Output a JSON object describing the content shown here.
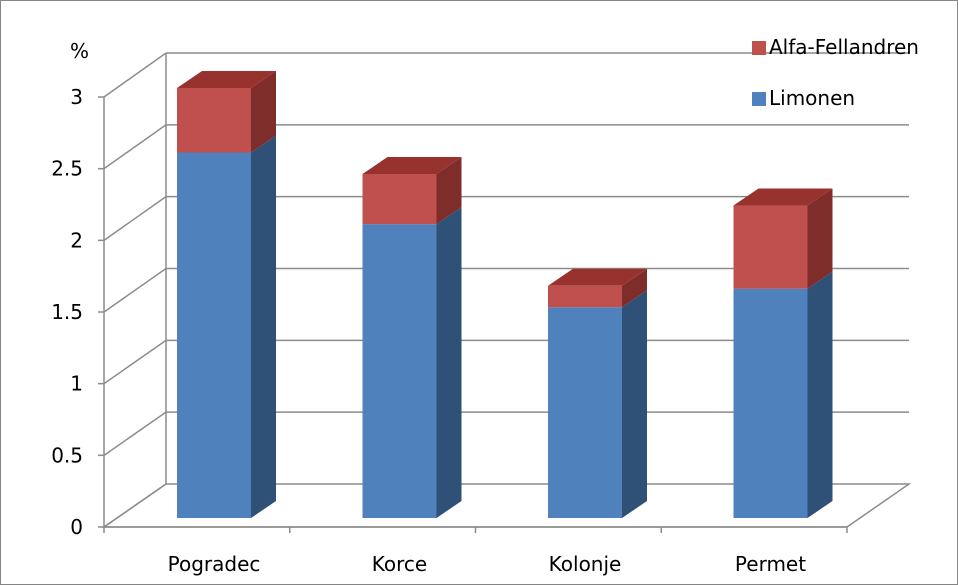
{
  "chart_data": {
    "type": "bar",
    "stacked": true,
    "three_d": true,
    "title": "",
    "xlabel": "",
    "ylabel": "%",
    "categories": [
      "Pogradec",
      "Korce",
      "Kolonje",
      "Permet"
    ],
    "series": [
      {
        "name": "Limonen",
        "values": [
          2.55,
          2.05,
          1.47,
          1.6
        ],
        "color": "#4F81BD",
        "side_color": "#2F5077",
        "top_color": "#3A6296"
      },
      {
        "name": "Alfa-Fellandren",
        "values": [
          0.45,
          0.35,
          0.15,
          0.58
        ],
        "color": "#C0504D",
        "side_color": "#7F2D2B",
        "top_color": "#97322F"
      }
    ],
    "ylim": [
      0,
      3
    ],
    "yticks": [
      "0",
      "0.5",
      "1",
      "1.5",
      "2",
      "2.5",
      "3"
    ],
    "grid": true,
    "legend_position": "top-right"
  }
}
